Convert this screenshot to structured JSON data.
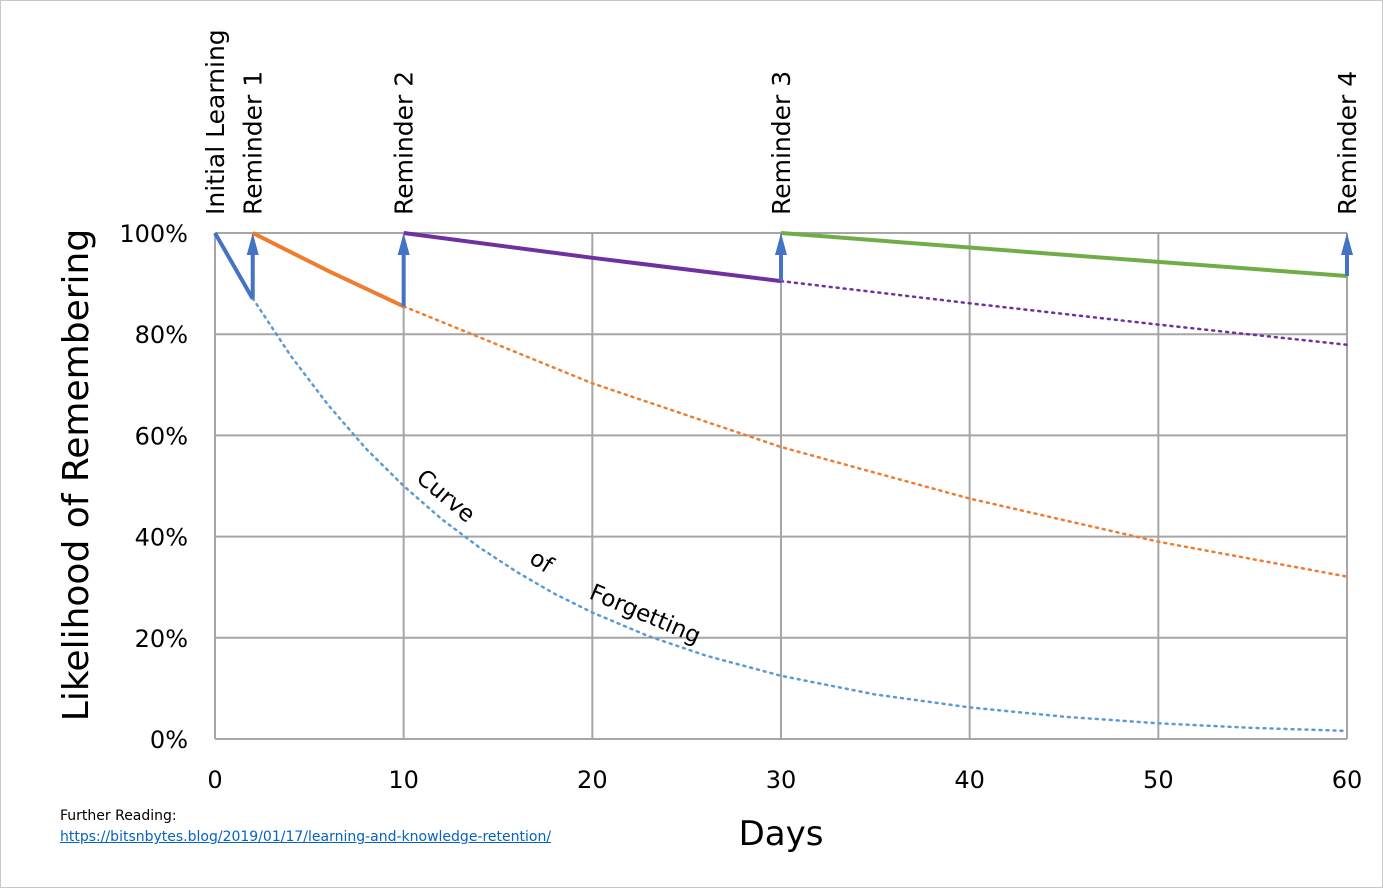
{
  "chart_data": {
    "type": "line",
    "title": "",
    "xlabel": "Days",
    "ylabel": "Likelihood of Remembering",
    "xlim": [
      0,
      60
    ],
    "ylim": [
      0,
      100
    ],
    "x_ticks": [
      "0",
      "10",
      "20",
      "30",
      "40",
      "50",
      "60"
    ],
    "y_ticks": [
      "0%",
      "20%",
      "40%",
      "60%",
      "80%",
      "100%"
    ],
    "grid": true,
    "events": [
      {
        "label": "Initial Learning",
        "x": 0
      },
      {
        "label": "Reminder 1",
        "x": 2
      },
      {
        "label": "Reminder 2",
        "x": 10
      },
      {
        "label": "Reminder 3",
        "x": 30
      },
      {
        "label": "Reminder 4",
        "x": 60
      }
    ],
    "annotation_words": [
      "Curve",
      "of",
      "Forgetting"
    ],
    "series": [
      {
        "color": "#4472C4",
        "style": "solid",
        "points": [
          [
            0,
            100
          ],
          [
            2,
            87
          ]
        ]
      },
      {
        "color": "#5B9BD5",
        "style": "dotted",
        "points": [
          [
            2,
            87.1
          ],
          [
            4,
            75.8
          ],
          [
            6,
            66
          ],
          [
            8,
            57.4
          ],
          [
            10,
            50
          ],
          [
            12,
            43.5
          ],
          [
            14,
            37.9
          ],
          [
            16,
            33
          ],
          [
            18,
            28.7
          ],
          [
            20,
            25
          ],
          [
            23,
            20.3
          ],
          [
            26,
            16.5
          ],
          [
            30,
            12.5
          ],
          [
            35,
            8.8
          ],
          [
            40,
            6.25
          ],
          [
            45,
            4.4
          ],
          [
            50,
            3.1
          ],
          [
            55,
            2.2
          ],
          [
            60,
            1.6
          ]
        ]
      },
      {
        "color": "#ED7D31",
        "style": "solid",
        "points": [
          [
            2,
            100
          ],
          [
            6,
            92.5
          ],
          [
            10,
            85.5
          ]
        ]
      },
      {
        "color": "#ED7D31",
        "style": "dotted",
        "points": [
          [
            10,
            85.5
          ],
          [
            20,
            70.3
          ],
          [
            30,
            57.7
          ],
          [
            40,
            47.5
          ],
          [
            50,
            39.0
          ],
          [
            60,
            32.1
          ]
        ]
      },
      {
        "color": "#7030A0",
        "style": "solid",
        "points": [
          [
            10,
            100
          ],
          [
            20,
            95.1
          ],
          [
            30,
            90.5
          ]
        ]
      },
      {
        "color": "#7030A0",
        "style": "dotted",
        "points": [
          [
            30,
            90.5
          ],
          [
            40,
            86.1
          ],
          [
            50,
            81.9
          ],
          [
            60,
            77.9
          ]
        ]
      },
      {
        "color": "#70AD47",
        "style": "solid",
        "points": [
          [
            30,
            100
          ],
          [
            45,
            95.7
          ],
          [
            60,
            91.5
          ]
        ]
      }
    ],
    "reminder_arrows": {
      "color": "#4472C4",
      "points": [
        [
          2,
          87,
          100
        ],
        [
          10,
          85.5,
          100
        ],
        [
          30,
          90.5,
          100
        ],
        [
          60,
          91.5,
          100
        ]
      ]
    }
  },
  "footer": {
    "label": "Further Reading:",
    "link": "https://bitsnbytes.blog/2019/01/17/learning-and-knowledge-retention/"
  }
}
